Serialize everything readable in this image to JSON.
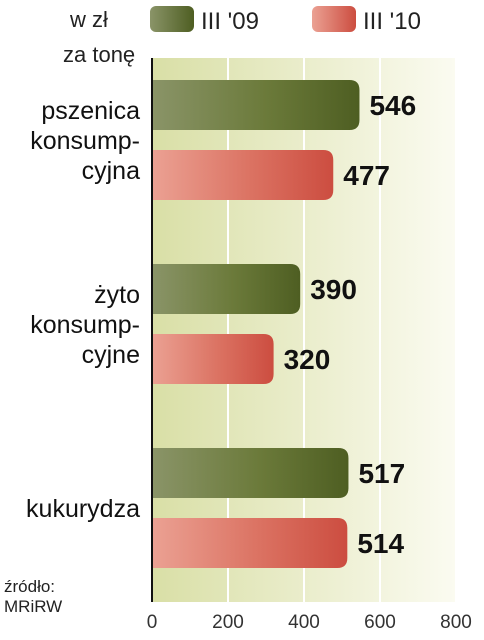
{
  "unit_label": {
    "line1": "w zł",
    "line2": "za tonę"
  },
  "source": {
    "line1": "źródło:",
    "line2": "MRiRW"
  },
  "colors": {
    "series_2009": "#5a6a2e",
    "series_2010": "#d2584b",
    "background_gradient_left": "#d9dfa6",
    "background_gradient_right": "#fbfbf1",
    "axis": "#111111",
    "gridline": "#ffffff"
  },
  "chart_data": {
    "type": "bar",
    "orientation": "horizontal",
    "categories": [
      [
        "pszenica",
        "konsump-",
        "cyjna"
      ],
      [
        "żyto",
        "konsump-",
        "cyjne"
      ],
      [
        "kukurydza"
      ]
    ],
    "series": [
      {
        "name": "III '09",
        "values": [
          546,
          390,
          517
        ]
      },
      {
        "name": "III '10",
        "values": [
          477,
          320,
          514
        ]
      }
    ],
    "xlim": [
      0,
      800
    ],
    "xticks": [
      0,
      200,
      400,
      600,
      800
    ],
    "grid": true,
    "legend_position": "top"
  }
}
